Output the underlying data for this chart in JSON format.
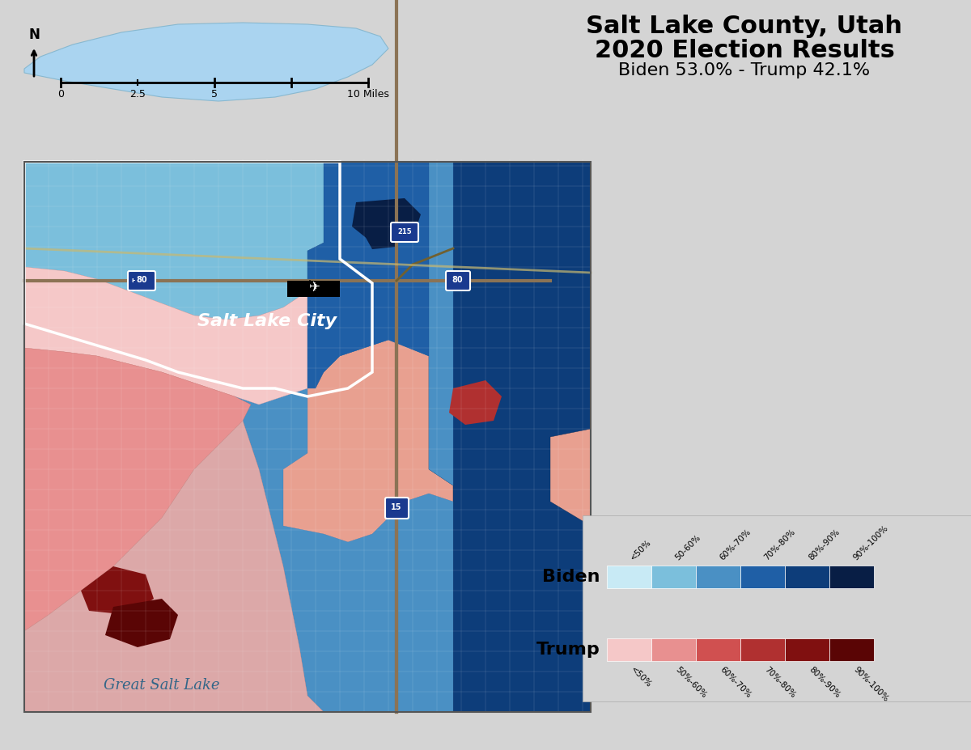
{
  "title_line1": "Salt Lake County, Utah",
  "title_line2": "2020 Election Results",
  "subtitle": "Biden 53.0% - Trump 42.1%",
  "title_fontsize": 22,
  "subtitle_fontsize": 16,
  "background_color": "#d4d4d4",
  "map_background": "#d4d4d4",
  "water_color": "#aad4f0",
  "great_salt_lake_label": "Great Salt Lake",
  "city_label": "Salt Lake City",
  "biden_colors": [
    "#c8eaf5",
    "#7bbfdc",
    "#4a90c4",
    "#1f5fa6",
    "#0d3d7a",
    "#081e45"
  ],
  "trump_colors": [
    "#f5c8c8",
    "#e89090",
    "#d05050",
    "#b03030",
    "#801010",
    "#5a0505"
  ],
  "biden_labels": [
    "<50%",
    "50-60%",
    "60%-70%",
    "70%-80%",
    "80%-90%",
    "90%-100%"
  ],
  "trump_labels": [
    "<50%",
    "50%-60%",
    "60%-70%",
    "70%-80%",
    "80%-90%",
    "90%-100%"
  ],
  "legend_biden_label": "Biden",
  "legend_trump_label": "Trump",
  "scale_label": "10 Miles",
  "north_arrow": true,
  "figsize": [
    12.0,
    9.27
  ],
  "dpi": 100
}
